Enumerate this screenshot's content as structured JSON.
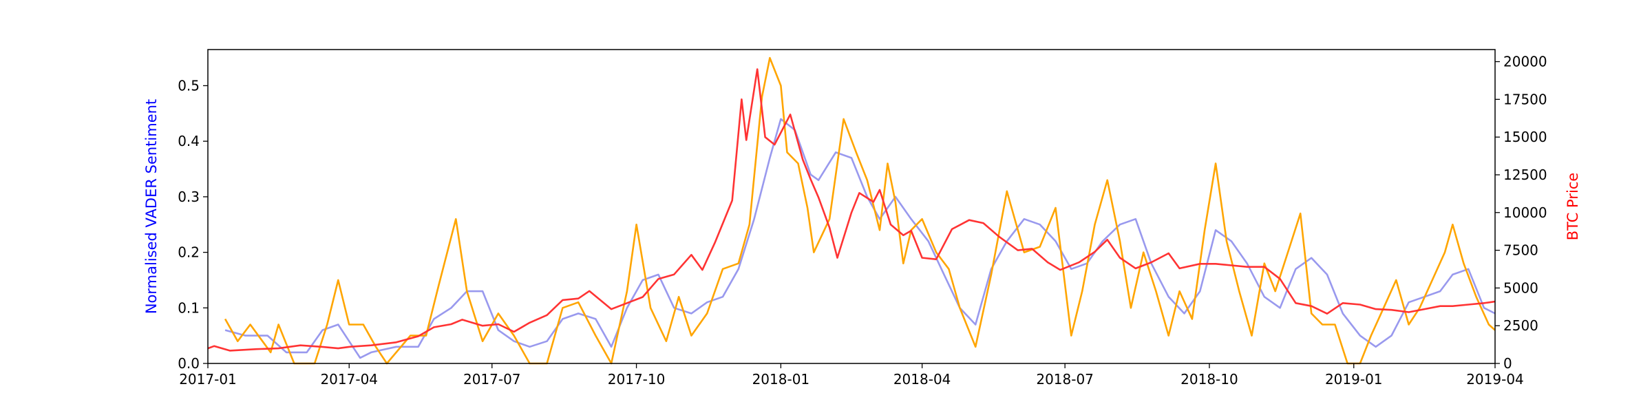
{
  "chart_data": {
    "type": "line",
    "title": "",
    "xlabel": "",
    "ylabel_left": "Normalised VADER Sentiment",
    "ylabel_right": "BTC Price",
    "left_label_color": "#0000ff",
    "right_label_color": "#ff0000",
    "x_ticks": [
      "2017-01",
      "2017-04",
      "2017-07",
      "2017-10",
      "2018-01",
      "2018-04",
      "2018-07",
      "2018-10",
      "2019-01",
      "2019-04"
    ],
    "y_left_ticks": [
      "0.0",
      "0.1",
      "0.2",
      "0.3",
      "0.4",
      "0.5"
    ],
    "y_right_ticks": [
      "0",
      "2500",
      "5000",
      "7500",
      "10000",
      "12500",
      "15000",
      "17500",
      "20000"
    ],
    "xlim": [
      "2017-01-01",
      "2019-04-01"
    ],
    "ylim_left": [
      0,
      0.565
    ],
    "ylim_right": [
      0,
      20800
    ],
    "grid": false,
    "legend": "none",
    "series": [
      {
        "color": "#9999ee",
        "axis": "left",
        "points": [
          [
            "2017-01-12",
            0.06
          ],
          [
            "2017-01-25",
            0.05
          ],
          [
            "2017-02-08",
            0.05
          ],
          [
            "2017-02-20",
            0.02
          ],
          [
            "2017-03-05",
            0.02
          ],
          [
            "2017-03-15",
            0.06
          ],
          [
            "2017-03-25",
            0.07
          ],
          [
            "2017-04-01",
            0.04
          ],
          [
            "2017-04-08",
            0.01
          ],
          [
            "2017-04-15",
            0.02
          ],
          [
            "2017-05-01",
            0.03
          ],
          [
            "2017-05-15",
            0.03
          ],
          [
            "2017-05-25",
            0.08
          ],
          [
            "2017-06-05",
            0.1
          ],
          [
            "2017-06-15",
            0.13
          ],
          [
            "2017-06-25",
            0.13
          ],
          [
            "2017-07-05",
            0.06
          ],
          [
            "2017-07-15",
            0.04
          ],
          [
            "2017-07-25",
            0.03
          ],
          [
            "2017-08-05",
            0.04
          ],
          [
            "2017-08-15",
            0.08
          ],
          [
            "2017-08-25",
            0.09
          ],
          [
            "2017-09-05",
            0.08
          ],
          [
            "2017-09-15",
            0.03
          ],
          [
            "2017-09-25",
            0.1
          ],
          [
            "2017-10-05",
            0.15
          ],
          [
            "2017-10-15",
            0.16
          ],
          [
            "2017-10-25",
            0.1
          ],
          [
            "2017-11-05",
            0.09
          ],
          [
            "2017-11-15",
            0.11
          ],
          [
            "2017-11-25",
            0.12
          ],
          [
            "2017-12-05",
            0.17
          ],
          [
            "2017-12-15",
            0.26
          ],
          [
            "2017-12-25",
            0.37
          ],
          [
            "2018-01-01",
            0.44
          ],
          [
            "2018-01-10",
            0.42
          ],
          [
            "2018-01-20",
            0.34
          ],
          [
            "2018-01-25",
            0.33
          ],
          [
            "2018-02-05",
            0.38
          ],
          [
            "2018-02-15",
            0.37
          ],
          [
            "2018-02-25",
            0.3
          ],
          [
            "2018-03-05",
            0.26
          ],
          [
            "2018-03-15",
            0.3
          ],
          [
            "2018-03-25",
            0.26
          ],
          [
            "2018-04-05",
            0.22
          ],
          [
            "2018-04-15",
            0.16
          ],
          [
            "2018-04-25",
            0.1
          ],
          [
            "2018-05-05",
            0.07
          ],
          [
            "2018-05-15",
            0.17
          ],
          [
            "2018-05-25",
            0.22
          ],
          [
            "2018-06-05",
            0.26
          ],
          [
            "2018-06-15",
            0.25
          ],
          [
            "2018-06-25",
            0.22
          ],
          [
            "2018-07-05",
            0.17
          ],
          [
            "2018-07-15",
            0.18
          ],
          [
            "2018-07-25",
            0.22
          ],
          [
            "2018-08-05",
            0.25
          ],
          [
            "2018-08-15",
            0.26
          ],
          [
            "2018-08-25",
            0.18
          ],
          [
            "2018-09-05",
            0.12
          ],
          [
            "2018-09-15",
            0.09
          ],
          [
            "2018-09-25",
            0.13
          ],
          [
            "2018-10-05",
            0.24
          ],
          [
            "2018-10-15",
            0.22
          ],
          [
            "2018-10-25",
            0.18
          ],
          [
            "2018-11-05",
            0.12
          ],
          [
            "2018-11-15",
            0.1
          ],
          [
            "2018-11-25",
            0.17
          ],
          [
            "2018-12-05",
            0.19
          ],
          [
            "2018-12-15",
            0.16
          ],
          [
            "2018-12-25",
            0.09
          ],
          [
            "2019-01-05",
            0.05
          ],
          [
            "2019-01-15",
            0.03
          ],
          [
            "2019-01-25",
            0.05
          ],
          [
            "2019-02-05",
            0.11
          ],
          [
            "2019-02-15",
            0.12
          ],
          [
            "2019-02-25",
            0.13
          ],
          [
            "2019-03-05",
            0.16
          ],
          [
            "2019-03-15",
            0.17
          ],
          [
            "2019-03-25",
            0.1
          ],
          [
            "2019-04-01",
            0.09
          ]
        ]
      },
      {
        "color": "#ffa500",
        "axis": "left",
        "points": [
          [
            "2017-01-12",
            0.08
          ],
          [
            "2017-01-20",
            0.04
          ],
          [
            "2017-01-28",
            0.07
          ],
          [
            "2017-02-10",
            0.02
          ],
          [
            "2017-02-15",
            0.07
          ],
          [
            "2017-02-25",
            0.0
          ],
          [
            "2017-03-10",
            0.0
          ],
          [
            "2017-03-18",
            0.07
          ],
          [
            "2017-03-25",
            0.15
          ],
          [
            "2017-04-01",
            0.07
          ],
          [
            "2017-04-10",
            0.07
          ],
          [
            "2017-04-18",
            0.03
          ],
          [
            "2017-04-25",
            0.0
          ],
          [
            "2017-05-10",
            0.05
          ],
          [
            "2017-05-20",
            0.05
          ],
          [
            "2017-05-28",
            0.14
          ],
          [
            "2017-06-08",
            0.26
          ],
          [
            "2017-06-15",
            0.13
          ],
          [
            "2017-06-25",
            0.04
          ],
          [
            "2017-07-05",
            0.09
          ],
          [
            "2017-07-15",
            0.05
          ],
          [
            "2017-07-25",
            0.0
          ],
          [
            "2017-08-05",
            0.0
          ],
          [
            "2017-08-15",
            0.1
          ],
          [
            "2017-08-25",
            0.11
          ],
          [
            "2017-09-05",
            0.05
          ],
          [
            "2017-09-15",
            0.0
          ],
          [
            "2017-09-25",
            0.13
          ],
          [
            "2017-10-01",
            0.25
          ],
          [
            "2017-10-10",
            0.1
          ],
          [
            "2017-10-20",
            0.04
          ],
          [
            "2017-10-28",
            0.12
          ],
          [
            "2017-11-05",
            0.05
          ],
          [
            "2017-11-15",
            0.09
          ],
          [
            "2017-11-25",
            0.17
          ],
          [
            "2017-12-05",
            0.18
          ],
          [
            "2017-12-12",
            0.25
          ],
          [
            "2017-12-20",
            0.48
          ],
          [
            "2017-12-25",
            0.55
          ],
          [
            "2018-01-01",
            0.5
          ],
          [
            "2018-01-05",
            0.38
          ],
          [
            "2018-01-12",
            0.36
          ],
          [
            "2018-01-18",
            0.28
          ],
          [
            "2018-01-22",
            0.2
          ],
          [
            "2018-02-01",
            0.26
          ],
          [
            "2018-02-10",
            0.44
          ],
          [
            "2018-02-18",
            0.38
          ],
          [
            "2018-02-25",
            0.33
          ],
          [
            "2018-03-05",
            0.24
          ],
          [
            "2018-03-10",
            0.36
          ],
          [
            "2018-03-15",
            0.29
          ],
          [
            "2018-03-20",
            0.18
          ],
          [
            "2018-03-25",
            0.24
          ],
          [
            "2018-04-01",
            0.26
          ],
          [
            "2018-04-10",
            0.2
          ],
          [
            "2018-04-18",
            0.17
          ],
          [
            "2018-04-25",
            0.1
          ],
          [
            "2018-05-05",
            0.03
          ],
          [
            "2018-05-15",
            0.16
          ],
          [
            "2018-05-25",
            0.31
          ],
          [
            "2018-06-05",
            0.2
          ],
          [
            "2018-06-15",
            0.21
          ],
          [
            "2018-06-25",
            0.28
          ],
          [
            "2018-07-05",
            0.05
          ],
          [
            "2018-07-12",
            0.13
          ],
          [
            "2018-07-20",
            0.25
          ],
          [
            "2018-07-28",
            0.33
          ],
          [
            "2018-08-05",
            0.22
          ],
          [
            "2018-08-12",
            0.1
          ],
          [
            "2018-08-20",
            0.2
          ],
          [
            "2018-08-28",
            0.13
          ],
          [
            "2018-09-05",
            0.05
          ],
          [
            "2018-09-12",
            0.13
          ],
          [
            "2018-09-20",
            0.08
          ],
          [
            "2018-09-28",
            0.24
          ],
          [
            "2018-10-05",
            0.36
          ],
          [
            "2018-10-12",
            0.22
          ],
          [
            "2018-10-20",
            0.13
          ],
          [
            "2018-10-28",
            0.05
          ],
          [
            "2018-11-05",
            0.18
          ],
          [
            "2018-11-12",
            0.13
          ],
          [
            "2018-11-20",
            0.2
          ],
          [
            "2018-11-28",
            0.27
          ],
          [
            "2018-12-05",
            0.09
          ],
          [
            "2018-12-12",
            0.07
          ],
          [
            "2018-12-20",
            0.07
          ],
          [
            "2018-12-28",
            0.0
          ],
          [
            "2019-01-05",
            0.0
          ],
          [
            "2019-01-12",
            0.05
          ],
          [
            "2019-01-20",
            0.1
          ],
          [
            "2019-01-28",
            0.15
          ],
          [
            "2019-02-05",
            0.07
          ],
          [
            "2019-02-12",
            0.1
          ],
          [
            "2019-02-20",
            0.15
          ],
          [
            "2019-02-28",
            0.2
          ],
          [
            "2019-03-05",
            0.25
          ],
          [
            "2019-03-12",
            0.18
          ],
          [
            "2019-03-20",
            0.12
          ],
          [
            "2019-03-28",
            0.07
          ],
          [
            "2019-04-01",
            0.06
          ]
        ]
      },
      {
        "color": "#ff3333",
        "axis": "right",
        "points": [
          [
            "2017-01-01",
            1000
          ],
          [
            "2017-01-05",
            1150
          ],
          [
            "2017-01-15",
            850
          ],
          [
            "2017-02-01",
            950
          ],
          [
            "2017-02-15",
            1000
          ],
          [
            "2017-03-01",
            1200
          ],
          [
            "2017-03-15",
            1100
          ],
          [
            "2017-03-25",
            1000
          ],
          [
            "2017-04-01",
            1100
          ],
          [
            "2017-04-15",
            1200
          ],
          [
            "2017-05-01",
            1400
          ],
          [
            "2017-05-15",
            1800
          ],
          [
            "2017-05-25",
            2400
          ],
          [
            "2017-06-05",
            2600
          ],
          [
            "2017-06-12",
            2900
          ],
          [
            "2017-06-25",
            2500
          ],
          [
            "2017-07-05",
            2600
          ],
          [
            "2017-07-15",
            2100
          ],
          [
            "2017-07-25",
            2700
          ],
          [
            "2017-08-05",
            3200
          ],
          [
            "2017-08-15",
            4200
          ],
          [
            "2017-08-25",
            4300
          ],
          [
            "2017-09-01",
            4800
          ],
          [
            "2017-09-15",
            3600
          ],
          [
            "2017-09-25",
            4000
          ],
          [
            "2017-10-05",
            4400
          ],
          [
            "2017-10-15",
            5600
          ],
          [
            "2017-10-25",
            5900
          ],
          [
            "2017-11-05",
            7200
          ],
          [
            "2017-11-12",
            6200
          ],
          [
            "2017-11-20",
            8000
          ],
          [
            "2017-12-01",
            10800
          ],
          [
            "2017-12-07",
            17500
          ],
          [
            "2017-12-10",
            14800
          ],
          [
            "2017-12-17",
            19500
          ],
          [
            "2017-12-22",
            15000
          ],
          [
            "2017-12-28",
            14500
          ],
          [
            "2018-01-07",
            16500
          ],
          [
            "2018-01-15",
            13500
          ],
          [
            "2018-01-20",
            12200
          ],
          [
            "2018-01-25",
            11000
          ],
          [
            "2018-02-01",
            9000
          ],
          [
            "2018-02-06",
            7000
          ],
          [
            "2018-02-15",
            10000
          ],
          [
            "2018-02-20",
            11300
          ],
          [
            "2018-03-01",
            10700
          ],
          [
            "2018-03-05",
            11500
          ],
          [
            "2018-03-12",
            9200
          ],
          [
            "2018-03-20",
            8500
          ],
          [
            "2018-03-25",
            8800
          ],
          [
            "2018-04-01",
            7000
          ],
          [
            "2018-04-10",
            6900
          ],
          [
            "2018-04-20",
            8900
          ],
          [
            "2018-05-01",
            9500
          ],
          [
            "2018-05-10",
            9300
          ],
          [
            "2018-05-20",
            8400
          ],
          [
            "2018-06-01",
            7500
          ],
          [
            "2018-06-10",
            7600
          ],
          [
            "2018-06-20",
            6700
          ],
          [
            "2018-06-28",
            6200
          ],
          [
            "2018-07-10",
            6700
          ],
          [
            "2018-07-20",
            7400
          ],
          [
            "2018-07-28",
            8200
          ],
          [
            "2018-08-05",
            7000
          ],
          [
            "2018-08-15",
            6300
          ],
          [
            "2018-08-25",
            6700
          ],
          [
            "2018-09-05",
            7300
          ],
          [
            "2018-09-12",
            6300
          ],
          [
            "2018-09-25",
            6600
          ],
          [
            "2018-10-05",
            6600
          ],
          [
            "2018-10-15",
            6500
          ],
          [
            "2018-10-25",
            6400
          ],
          [
            "2018-11-05",
            6400
          ],
          [
            "2018-11-15",
            5600
          ],
          [
            "2018-11-25",
            4000
          ],
          [
            "2018-12-05",
            3800
          ],
          [
            "2018-12-15",
            3300
          ],
          [
            "2018-12-25",
            4000
          ],
          [
            "2019-01-05",
            3900
          ],
          [
            "2019-01-15",
            3600
          ],
          [
            "2019-01-25",
            3550
          ],
          [
            "2019-02-05",
            3400
          ],
          [
            "2019-02-15",
            3600
          ],
          [
            "2019-02-25",
            3800
          ],
          [
            "2019-03-05",
            3800
          ],
          [
            "2019-03-15",
            3900
          ],
          [
            "2019-03-25",
            4000
          ],
          [
            "2019-04-01",
            4100
          ]
        ]
      }
    ]
  }
}
